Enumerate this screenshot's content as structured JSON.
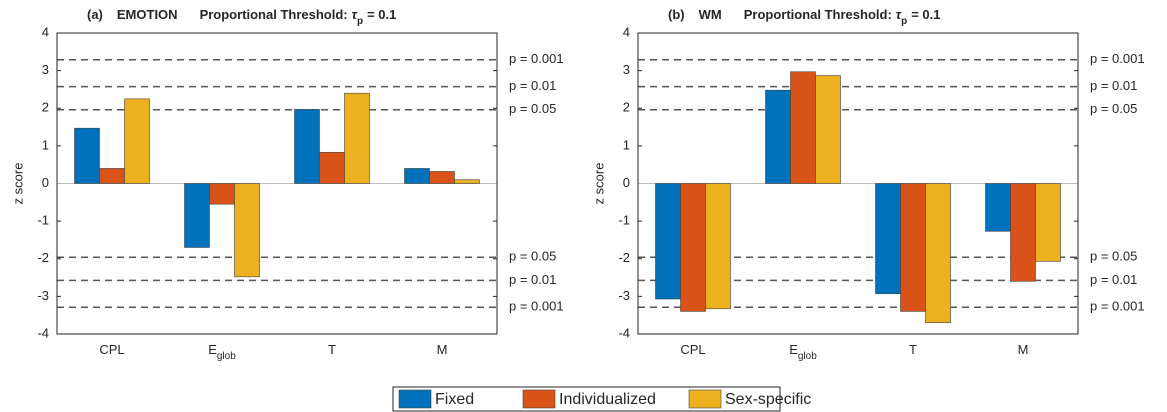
{
  "chart_data": [
    {
      "type": "bar",
      "title": "(a)",
      "subtitle": "EMOTION",
      "threshold_label": "Proportional Threshold:",
      "threshold_symbol": "τ",
      "threshold_subscript": "p",
      "threshold_value": "= 0.1",
      "ylabel": "z score",
      "categories": [
        "CPL",
        "E",
        "T",
        "M"
      ],
      "category_subscripts": {
        "1": "glob"
      },
      "ylim": [
        -4,
        4
      ],
      "yticks": [
        -4,
        -3,
        -2,
        -1,
        0,
        1,
        2,
        3,
        4
      ],
      "reference_lines": [
        {
          "value": 3.29,
          "label": "p = 0.001"
        },
        {
          "value": 2.576,
          "label": "p = 0.01"
        },
        {
          "value": 1.96,
          "label": "p = 0.05"
        },
        {
          "value": -1.96,
          "label": "p = 0.05"
        },
        {
          "value": -2.576,
          "label": "p = 0.01"
        },
        {
          "value": -3.29,
          "label": "p = 0.001"
        }
      ],
      "series": [
        {
          "name": "Fixed",
          "color": "#0072BD",
          "values": [
            1.47,
            -1.7,
            1.97,
            0.4
          ]
        },
        {
          "name": "Individualized",
          "color": "#D95319",
          "values": [
            0.4,
            -0.55,
            0.83,
            0.32
          ]
        },
        {
          "name": "Sex-specific",
          "color": "#EDB120",
          "values": [
            2.25,
            -2.48,
            2.4,
            0.1
          ]
        }
      ]
    },
    {
      "type": "bar",
      "title": "(b)",
      "subtitle": "WM",
      "threshold_label": "Proportional Threshold:",
      "threshold_symbol": "τ",
      "threshold_subscript": "p",
      "threshold_value": "= 0.1",
      "ylabel": "z score",
      "categories": [
        "CPL",
        "E",
        "T",
        "M"
      ],
      "category_subscripts": {
        "1": "glob"
      },
      "ylim": [
        -4,
        4
      ],
      "yticks": [
        -4,
        -3,
        -2,
        -1,
        0,
        1,
        2,
        3,
        4
      ],
      "reference_lines": [
        {
          "value": 3.29,
          "label": "p = 0.001"
        },
        {
          "value": 2.576,
          "label": "p = 0.01"
        },
        {
          "value": 1.96,
          "label": "p = 0.05"
        },
        {
          "value": -1.96,
          "label": "p = 0.05"
        },
        {
          "value": -2.576,
          "label": "p = 0.01"
        },
        {
          "value": -3.29,
          "label": "p = 0.001"
        }
      ],
      "series": [
        {
          "color": "#0072BD",
          "values": [
            -3.07,
            2.48,
            -2.93,
            -1.27
          ]
        },
        {
          "color": "#D95319",
          "values": [
            -3.4,
            2.97,
            -3.4,
            -2.6
          ]
        },
        {
          "color": "#EDB120",
          "values": [
            -3.33,
            2.87,
            -3.7,
            -2.07
          ]
        }
      ]
    }
  ]
}
